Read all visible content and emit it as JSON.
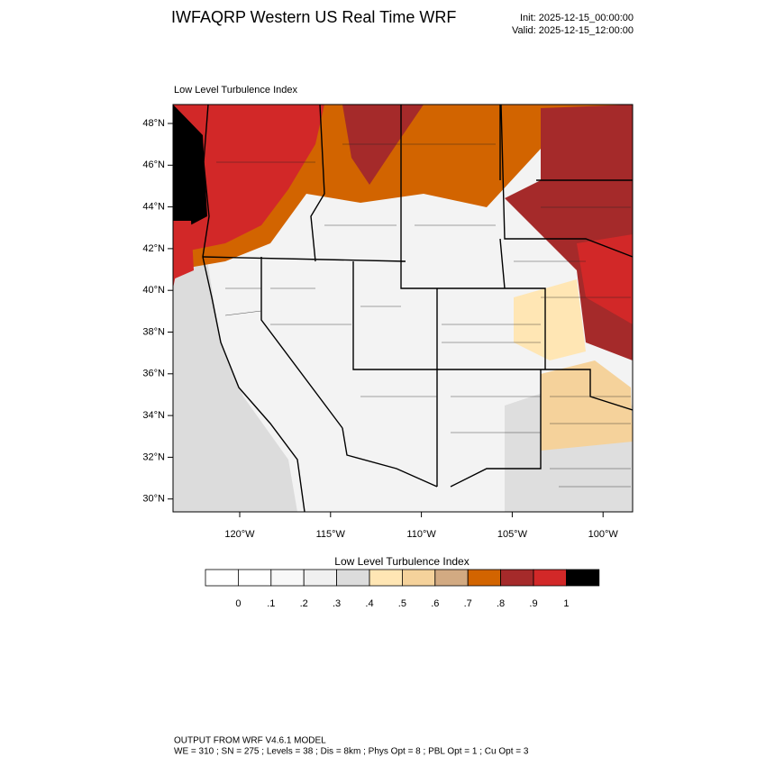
{
  "header": {
    "title": "IWFAQRP Western US Real Time WRF",
    "init": "Init: 2025-12-15_00:00:00",
    "valid": "Valid: 2025-12-15_12:00:00"
  },
  "map": {
    "panel_title": "Low Level Turbulence Index",
    "lat_labels": [
      "48°N",
      "46°N",
      "44°N",
      "42°N",
      "40°N",
      "38°N",
      "36°N",
      "34°N",
      "32°N",
      "30°N"
    ],
    "lon_labels": [
      "120°W",
      "115°W",
      "110°W",
      "105°W",
      "100°W"
    ]
  },
  "colorbar": {
    "title": "Low Level Turbulence Index",
    "labels": [
      "0",
      ".1",
      ".2",
      ".3",
      ".4",
      ".5",
      ".6",
      ".7",
      ".8",
      ".9",
      "1"
    ],
    "colors": [
      "#ffffff",
      "#f8f8f8",
      "#f0f0f0",
      "#dcdcdc",
      "#ffe6b4",
      "#f5d29b",
      "#d2aa82",
      "#d26400",
      "#a52a2a",
      "#d22828",
      "#000000"
    ]
  },
  "footer": {
    "line1": "OUTPUT FROM WRF V4.6.1 MODEL",
    "line2": "WE = 310 ; SN = 275 ; Levels = 38 ; Dis = 8km ; Phys Opt = 8 ; PBL Opt = 1 ; Cu Opt = 3"
  }
}
